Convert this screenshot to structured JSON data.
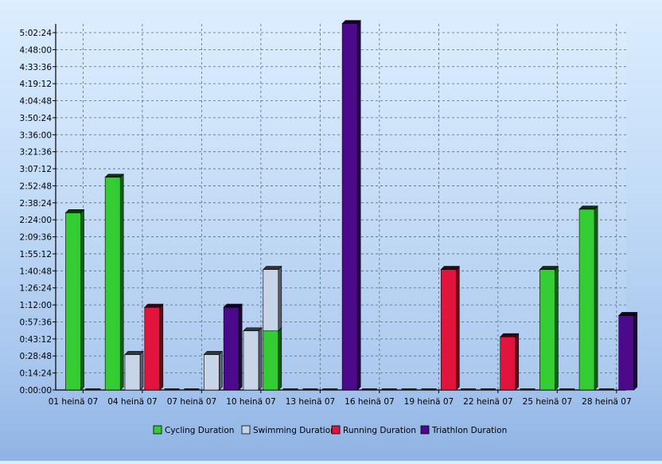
{
  "chart_data": {
    "type": "bar",
    "stacked": true,
    "x_tick_labels": [
      "01 heinä 07",
      "04 heinä 07",
      "07 heinä 07",
      "10 heinä 07",
      "13 heinä 07",
      "16 heinä 07",
      "19 heinä 07",
      "22 heinä 07",
      "25 heinä 07",
      "28 heinä 07"
    ],
    "y_tick_labels": [
      "0:00:00",
      "0:14:24",
      "0:28:48",
      "0:43:12",
      "0:57:36",
      "1:12:00",
      "1:26:24",
      "1:40:48",
      "1:55:12",
      "2:09:36",
      "2:24:00",
      "2:38:24",
      "2:52:48",
      "3:07:12",
      "3:21:36",
      "3:36:00",
      "3:50:24",
      "4:04:48",
      "4:19:12",
      "4:33:36",
      "4:48:00",
      "5:02:24"
    ],
    "ylim_minutes": [
      0,
      310
    ],
    "grid": true,
    "legend_position": "bottom",
    "series": [
      {
        "name": "Cycling Duration",
        "color": "#33cc33",
        "values": [
          {
            "day": 1,
            "min": 150
          },
          {
            "day": 3,
            "min": 180
          },
          {
            "day": 11,
            "min": 50
          },
          {
            "day": 25,
            "min": 102
          },
          {
            "day": 27,
            "min": 153
          }
        ]
      },
      {
        "name": "Swimming Duration",
        "color": "#c8d4e8",
        "values": [
          {
            "day": 4,
            "min": 30
          },
          {
            "day": 8,
            "min": 30
          },
          {
            "day": 10,
            "min": 50
          },
          {
            "day": 11,
            "min": 52
          }
        ]
      },
      {
        "name": "Running Duration",
        "color": "#e0143c",
        "values": [
          {
            "day": 5,
            "min": 70
          },
          {
            "day": 20,
            "min": 102
          },
          {
            "day": 23,
            "min": 45
          }
        ]
      },
      {
        "name": "Triathlon Duration",
        "color": "#4b0a8c",
        "values": [
          {
            "day": 9,
            "min": 70
          },
          {
            "day": 15,
            "min": 310
          },
          {
            "day": 29,
            "min": 63
          }
        ]
      }
    ]
  }
}
